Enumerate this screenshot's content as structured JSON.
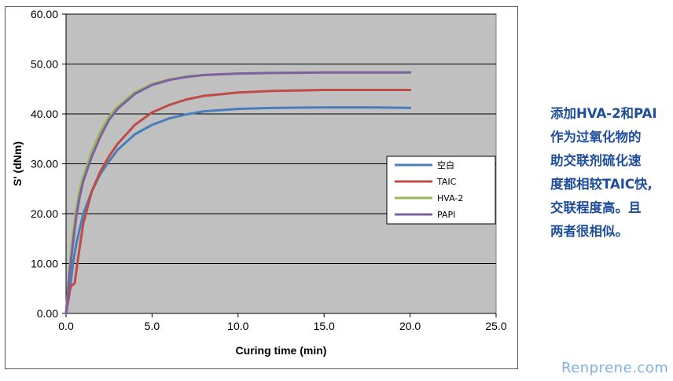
{
  "chart_data": {
    "type": "line",
    "xlabel": "Curing time (min)",
    "ylabel": "S' (dNm)",
    "xlim": [
      0,
      25
    ],
    "ylim": [
      0,
      60
    ],
    "x_ticks": [
      "0.0",
      "5.0",
      "10.0",
      "15.0",
      "20.0",
      "25.0"
    ],
    "y_ticks": [
      "0.00",
      "10.00",
      "20.00",
      "30.00",
      "40.00",
      "50.00",
      "60.00"
    ],
    "grid": "horizontal",
    "plot_background": "#c0c0c0",
    "legend_position": "right",
    "series": [
      {
        "name": "空白",
        "color": "#4a7ebb",
        "points": [
          [
            0,
            0
          ],
          [
            0.2,
            4
          ],
          [
            0.4,
            10
          ],
          [
            0.6,
            14
          ],
          [
            0.8,
            17
          ],
          [
            1.0,
            20
          ],
          [
            1.5,
            24.5
          ],
          [
            2.0,
            28
          ],
          [
            2.5,
            30.5
          ],
          [
            3.0,
            32.8
          ],
          [
            4.0,
            35.9
          ],
          [
            5.0,
            37.8
          ],
          [
            6.0,
            39.1
          ],
          [
            7.0,
            39.9
          ],
          [
            8.0,
            40.5
          ],
          [
            10.0,
            41
          ],
          [
            12.0,
            41.2
          ],
          [
            15.0,
            41.3
          ],
          [
            18.0,
            41.3
          ],
          [
            20.0,
            41.2
          ]
        ]
      },
      {
        "name": "TAIC",
        "color": "#be4b48",
        "points": [
          [
            0,
            0
          ],
          [
            0.2,
            4.5
          ],
          [
            0.3,
            5.5
          ],
          [
            0.5,
            6
          ],
          [
            0.7,
            11
          ],
          [
            1.0,
            18
          ],
          [
            1.5,
            24.5
          ],
          [
            2.0,
            28.5
          ],
          [
            2.5,
            31.5
          ],
          [
            3.0,
            34
          ],
          [
            4.0,
            37.8
          ],
          [
            5.0,
            40.3
          ],
          [
            6.0,
            41.8
          ],
          [
            7.0,
            42.9
          ],
          [
            8.0,
            43.6
          ],
          [
            10.0,
            44.3
          ],
          [
            12.0,
            44.6
          ],
          [
            15.0,
            44.8
          ],
          [
            18.0,
            44.8
          ],
          [
            20.0,
            44.8
          ]
        ]
      },
      {
        "name": "HVA-2",
        "color": "#98b954",
        "points": [
          [
            0,
            0
          ],
          [
            0.2,
            9
          ],
          [
            0.4,
            16
          ],
          [
            0.6,
            21
          ],
          [
            0.8,
            25
          ],
          [
            1.0,
            27.5
          ],
          [
            1.5,
            32.5
          ],
          [
            2.0,
            36.5
          ],
          [
            2.5,
            39.5
          ],
          [
            3.0,
            41.5
          ],
          [
            4.0,
            44.3
          ],
          [
            5.0,
            46
          ],
          [
            6.0,
            46.9
          ],
          [
            7.0,
            47.5
          ],
          [
            8.0,
            47.8
          ],
          [
            10.0,
            48.1
          ],
          [
            12.0,
            48.2
          ],
          [
            15.0,
            48.3
          ],
          [
            18.0,
            48.3
          ],
          [
            20.0,
            48.3
          ]
        ]
      },
      {
        "name": "PAPI",
        "color": "#7d60a0",
        "points": [
          [
            0,
            0
          ],
          [
            0.2,
            8
          ],
          [
            0.4,
            14
          ],
          [
            0.6,
            19.5
          ],
          [
            0.8,
            23.5
          ],
          [
            1.0,
            26.5
          ],
          [
            1.5,
            31.5
          ],
          [
            2.0,
            35.5
          ],
          [
            2.5,
            38.8
          ],
          [
            3.0,
            41
          ],
          [
            4.0,
            44
          ],
          [
            5.0,
            45.8
          ],
          [
            6.0,
            46.8
          ],
          [
            7.0,
            47.4
          ],
          [
            8.0,
            47.8
          ],
          [
            10.0,
            48.1
          ],
          [
            12.0,
            48.2
          ],
          [
            15.0,
            48.3
          ],
          [
            18.0,
            48.3
          ],
          [
            20.0,
            48.3
          ]
        ]
      }
    ]
  },
  "side_note": {
    "lines": [
      "添加HVA-2和PAI",
      "作为过氧化物的",
      "助交联剂硫化速",
      "度都相较TAIC快,",
      "交联程度高。且",
      "两者很相似。"
    ]
  },
  "watermark": "Renprene.com"
}
